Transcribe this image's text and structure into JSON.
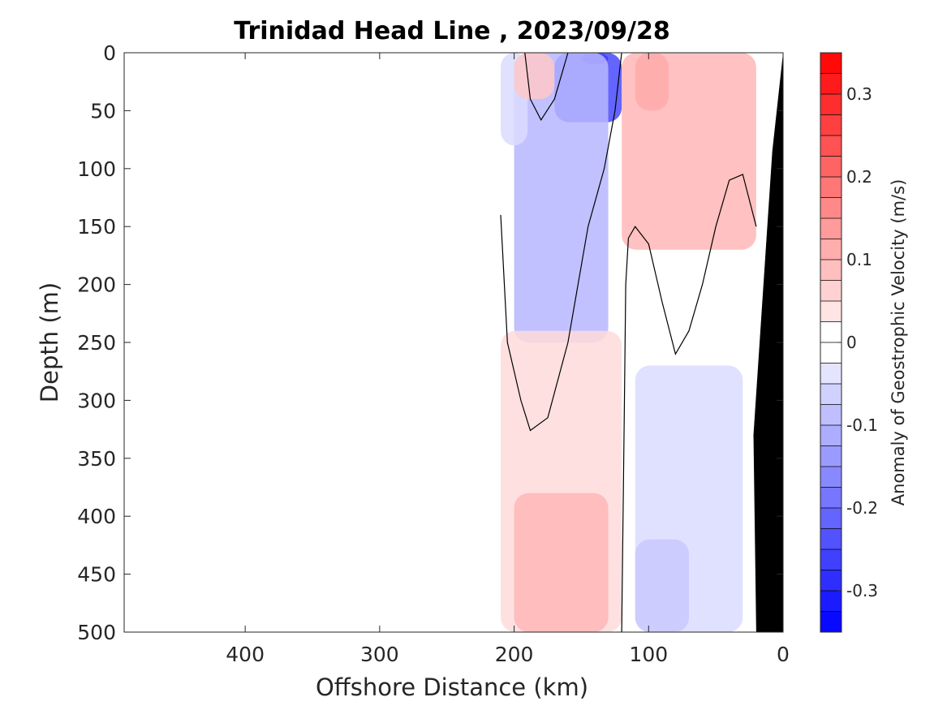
{
  "chart_data": {
    "type": "contourf",
    "title": "Trinidad Head Line , 2023/09/28",
    "xlabel": "Offshore Distance (km)",
    "ylabel": "Depth (m)",
    "xlim": [
      490,
      0
    ],
    "ylim": [
      0,
      500
    ],
    "x_reversed": true,
    "y_reversed": true,
    "xticks": [
      400,
      300,
      200,
      100,
      0
    ],
    "yticks": [
      0,
      50,
      100,
      150,
      200,
      250,
      300,
      350,
      400,
      450,
      500
    ],
    "colorbar": {
      "label": "Anomaly of Geostrophic Velocity (m/s)",
      "clim": [
        -0.35,
        0.35
      ],
      "step": 0.025,
      "ticks": [
        0.3,
        0.2,
        0.1,
        0,
        -0.1,
        -0.2,
        -0.3
      ],
      "colormap": "blue-white-red",
      "low_color": "#0000ff",
      "high_color": "#ff0000"
    },
    "bathymetry_color": "#000000",
    "section_x_range_km": [
      210,
      20
    ],
    "velocity_regions": [
      {
        "value": -0.35,
        "x": [
          150,
          130
        ],
        "depth": [
          0,
          10
        ]
      },
      {
        "value": -0.25,
        "x": [
          170,
          120
        ],
        "depth": [
          0,
          60
        ]
      },
      {
        "value": -0.1,
        "x": [
          200,
          130
        ],
        "depth": [
          0,
          250
        ]
      },
      {
        "value": -0.05,
        "x": [
          210,
          190
        ],
        "depth": [
          0,
          80
        ]
      },
      {
        "value": 0.075,
        "x": [
          200,
          170
        ],
        "depth": [
          0,
          40
        ]
      },
      {
        "value": 0.2,
        "x": [
          110,
          85
        ],
        "depth": [
          0,
          50
        ]
      },
      {
        "value": 0.1,
        "x": [
          120,
          20
        ],
        "depth": [
          0,
          170
        ]
      },
      {
        "value": 0.05,
        "x": [
          210,
          120
        ],
        "depth": [
          240,
          500
        ]
      },
      {
        "value": 0.1,
        "x": [
          200,
          130
        ],
        "depth": [
          380,
          500
        ]
      },
      {
        "value": -0.05,
        "x": [
          110,
          30
        ],
        "depth": [
          270,
          500
        ]
      },
      {
        "value": -0.075,
        "x": [
          110,
          70
        ],
        "depth": [
          420,
          500
        ]
      }
    ],
    "zero_contours": [
      {
        "x": [
          192,
          188,
          180,
          170,
          160
        ],
        "depth": [
          0,
          40,
          58,
          40,
          0
        ]
      },
      {
        "x": [
          210,
          205,
          195,
          188,
          175,
          160,
          145,
          133,
          125,
          122,
          120
        ],
        "depth": [
          140,
          250,
          300,
          326,
          315,
          250,
          150,
          100,
          50,
          20,
          0
        ]
      },
      {
        "x": [
          120,
          118,
          117,
          115,
          110,
          100,
          90,
          80,
          70,
          60,
          50,
          40,
          30,
          20
        ],
        "depth": [
          500,
          300,
          200,
          160,
          150,
          165,
          215,
          260,
          240,
          200,
          150,
          110,
          105,
          150
        ]
      }
    ]
  }
}
